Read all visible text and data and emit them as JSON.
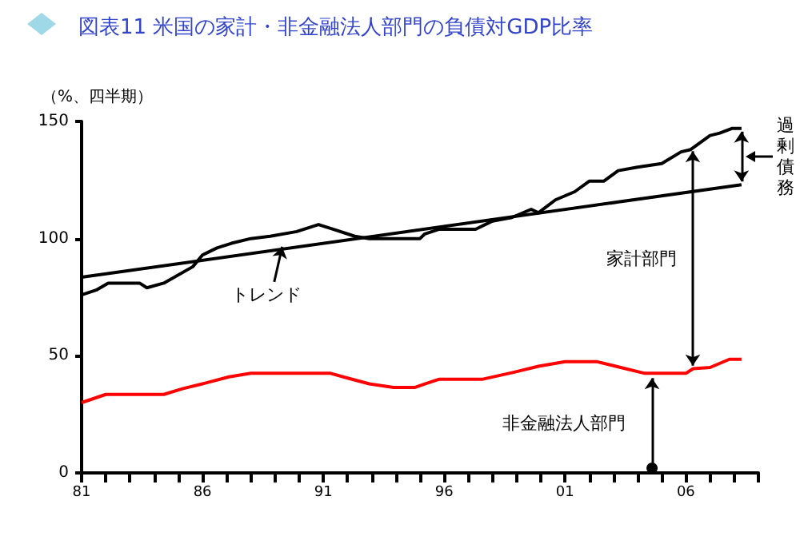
{
  "chart_data": {
    "type": "line",
    "title": "図表11 米国の家計・非金融法人部門の負債対GDP比率",
    "ylabel": "（%、四半期）",
    "xlim": [
      1981,
      2009
    ],
    "xticks": [
      {
        "value": 1981,
        "label": "81"
      },
      {
        "value": 1982,
        "label": null
      },
      {
        "value": 1983,
        "label": null
      },
      {
        "value": 1984,
        "label": null
      },
      {
        "value": 1985,
        "label": null
      },
      {
        "value": 1986,
        "label": "86"
      },
      {
        "value": 1987,
        "label": null
      },
      {
        "value": 1988,
        "label": null
      },
      {
        "value": 1989,
        "label": null
      },
      {
        "value": 1990,
        "label": null
      },
      {
        "value": 1991,
        "label": "91"
      },
      {
        "value": 1992,
        "label": null
      },
      {
        "value": 1993,
        "label": null
      },
      {
        "value": 1994,
        "label": null
      },
      {
        "value": 1995,
        "label": null
      },
      {
        "value": 1996,
        "label": "96"
      },
      {
        "value": 1997,
        "label": null
      },
      {
        "value": 1998,
        "label": null
      },
      {
        "value": 1999,
        "label": null
      },
      {
        "value": 2000,
        "label": null
      },
      {
        "value": 2001,
        "label": "01"
      },
      {
        "value": 2002,
        "label": null
      },
      {
        "value": 2003,
        "label": null
      },
      {
        "value": 2004,
        "label": null
      },
      {
        "value": 2005,
        "label": null
      },
      {
        "value": 2006,
        "label": "06"
      },
      {
        "value": 2007,
        "label": null
      },
      {
        "value": 2008,
        "label": null
      },
      {
        "value": 2009,
        "label": null
      }
    ],
    "ylim": [
      0,
      150
    ],
    "yticks": [
      0,
      50,
      100,
      150
    ],
    "grid": false,
    "marker": "none",
    "line_style": "solid",
    "series": [
      {
        "color": "#000000",
        "x": [
          1981,
          1981.6,
          1982.1,
          1983.4,
          1983.7,
          1984.4,
          1985.6,
          1986,
          1986.6,
          1987.2,
          1988,
          1988.8,
          1989.9,
          1990.8,
          1991.4,
          1992.3,
          1992.9,
          1994.2,
          1995,
          1995.2,
          1995.8,
          1997.3,
          1998,
          1998.8,
          1999.6,
          1999.9,
          2000.6,
          2001.4,
          2002,
          2002.6,
          2003.2,
          2004,
          2005,
          2005.8,
          2006.2,
          2007,
          2007.4,
          2007.9,
          2008.3
        ],
        "values": [
          76,
          78,
          81,
          81,
          79,
          81,
          88,
          93,
          96,
          98,
          100,
          101,
          103,
          106,
          104,
          101,
          100,
          100,
          100,
          102,
          104,
          104,
          107.5,
          109,
          112.5,
          111,
          116.5,
          120,
          124.5,
          124.5,
          129,
          130.5,
          132,
          137,
          138,
          144,
          145,
          147,
          147
        ]
      },
      {
        "color": "#ff0000",
        "x": [
          1981,
          1982,
          1984.4,
          1985.2,
          1986,
          1987.1,
          1988,
          1991.3,
          1992,
          1992.9,
          1993.9,
          1994.8,
          1995.2,
          1995.8,
          1997.6,
          1998.9,
          1999.9,
          2001,
          2002.3,
          2003.3,
          2004.3,
          2006,
          2006.3,
          2007,
          2007.8,
          2008.3
        ],
        "values": [
          30,
          33.5,
          33.5,
          36,
          38,
          41,
          42.5,
          42.5,
          40.5,
          38,
          36.5,
          36.5,
          38,
          40,
          40,
          43,
          45.5,
          47.5,
          47.5,
          45,
          42.5,
          42.5,
          44.5,
          45,
          48.5,
          48.5
        ]
      },
      {
        "color": "#000000",
        "x": [
          1981,
          2008.3
        ],
        "values": [
          83.5,
          123
        ]
      }
    ],
    "annotations": [
      {
        "text": "トレンド",
        "x": 1989.3,
        "y": 96.5
      },
      "家計部門",
      {
        "text": "過剰債務",
        "x": 2008.3,
        "y": 147
      },
      {
        "text": "非金融法人部門",
        "x": 2004.6,
        "y": 42.5
      }
    ]
  }
}
